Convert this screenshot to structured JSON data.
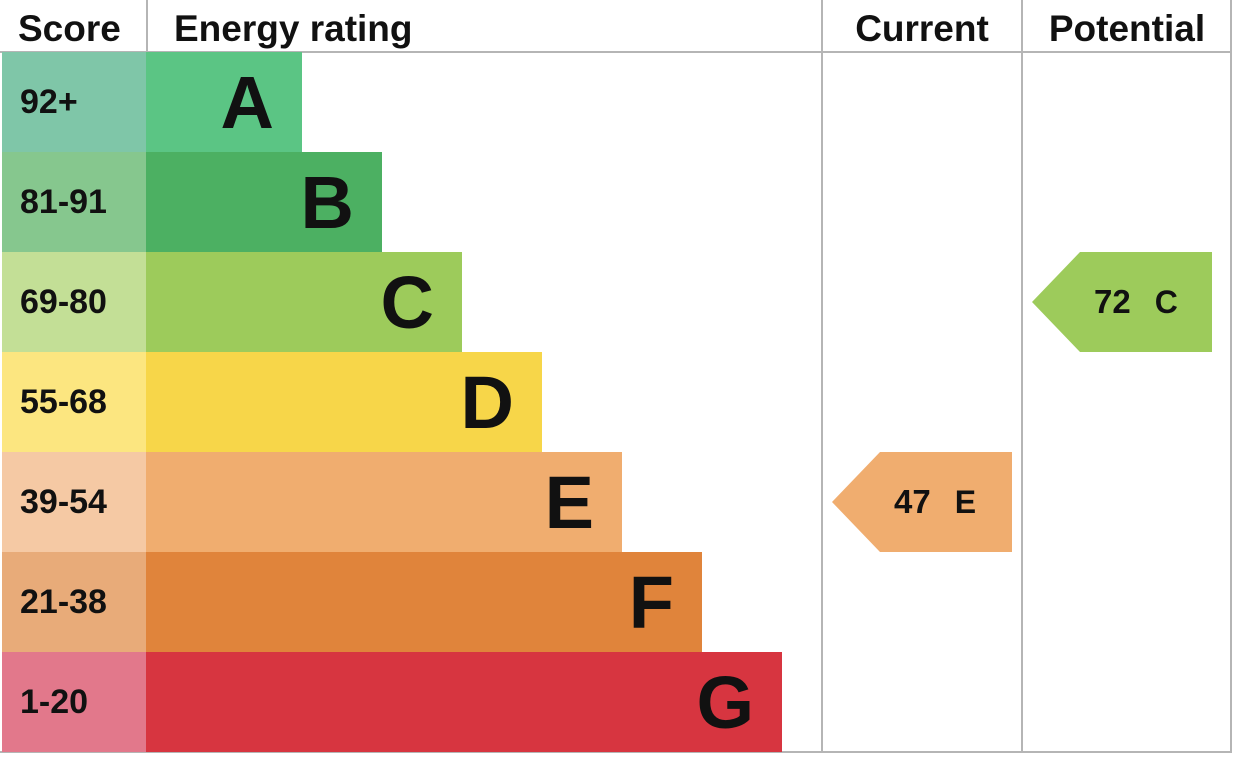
{
  "chart_data": {
    "type": "bar",
    "title": "",
    "headers": {
      "score": "Score",
      "rating": "Energy rating",
      "current": "Current",
      "potential": "Potential"
    },
    "bands": [
      {
        "letter": "A",
        "range": "92+",
        "color": "#5bc584",
        "score_color": "#7fc6a8"
      },
      {
        "letter": "B",
        "range": "81-91",
        "color": "#4cb062",
        "score_color": "#86c78e"
      },
      {
        "letter": "C",
        "range": "69-80",
        "color": "#9dcb5b",
        "score_color": "#c3df96"
      },
      {
        "letter": "D",
        "range": "55-68",
        "color": "#f7d649",
        "score_color": "#fce680"
      },
      {
        "letter": "E",
        "range": "39-54",
        "color": "#f0ad6f",
        "score_color": "#f5c9a4"
      },
      {
        "letter": "F",
        "range": "21-38",
        "color": "#e0843b",
        "score_color": "#e8ab79"
      },
      {
        "letter": "G",
        "range": "1-20",
        "color": "#d73540",
        "score_color": "#e2788b"
      }
    ],
    "current": {
      "value": "47",
      "letter": "E",
      "color": "#f0ad6f"
    },
    "potential": {
      "value": "72",
      "letter": "C",
      "color": "#9dcb5b"
    }
  }
}
